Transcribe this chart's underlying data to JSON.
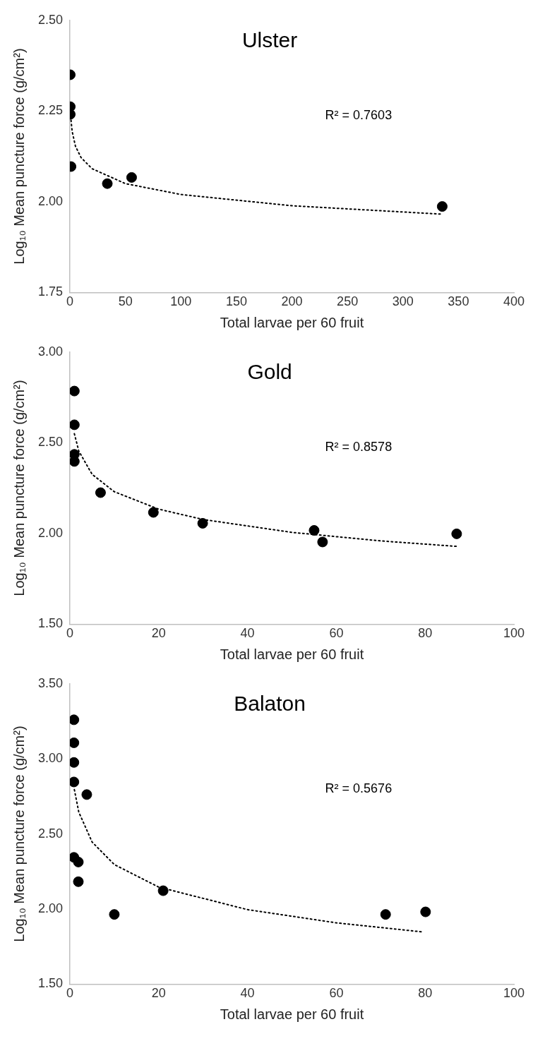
{
  "chart_data": [
    {
      "type": "scatter",
      "title": "Ulster",
      "xlabel": "Total larvae per 60 fruit",
      "ylabel": "Log₁₀ Mean puncture force (g/cm²)",
      "annotations": [
        "R² = 0.7603"
      ],
      "grid": false,
      "legend": false,
      "marker": "circle",
      "xlim": [
        0,
        400
      ],
      "xticks": [
        0,
        50,
        100,
        150,
        200,
        250,
        300,
        350,
        400
      ],
      "ylim": [
        1.75,
        2.5
      ],
      "yticks": [
        {
          "value": 1.75,
          "label": "1.75"
        },
        {
          "value": 2,
          "label": "2.00"
        },
        {
          "value": 2.25,
          "label": "2.25"
        },
        {
          "value": 2.5,
          "label": "2.50"
        }
      ],
      "series": [
        {
          "type": "scatter",
          "color": "#000000",
          "x": [
            0.3,
            0.3,
            0.3,
            1,
            33.7,
            55.6,
            335.4
          ],
          "values": [
            2.35,
            2.262,
            2.241,
            2.097,
            2.05,
            2.067,
            1.987
          ]
        },
        {
          "type": "line",
          "color": "#000000",
          "line_style": "dotted",
          "marker": "none",
          "x": [
            1,
            2,
            5,
            10,
            20,
            50,
            100,
            200,
            334
          ],
          "values": [
            2.225,
            2.194,
            2.153,
            2.122,
            2.091,
            2.05,
            2.02,
            1.989,
            1.966
          ]
        }
      ]
    },
    {
      "type": "scatter",
      "title": "Gold",
      "xlabel": "Total larvae per 60 fruit",
      "ylabel": "Log₁₀ Mean puncture force (g/cm²)",
      "annotations": [
        "R² = 0.8578"
      ],
      "grid": false,
      "legend": false,
      "marker": "circle",
      "xlim": [
        0,
        100
      ],
      "xticks": [
        0,
        20,
        40,
        60,
        80,
        100
      ],
      "ylim": [
        1.5,
        3
      ],
      "yticks": [
        {
          "value": 1.5,
          "label": "1.50"
        },
        {
          "value": 2,
          "label": "2.00"
        },
        {
          "value": 2.5,
          "label": "2.50"
        },
        {
          "value": 3,
          "label": "3.00"
        }
      ],
      "series": [
        {
          "type": "scatter",
          "color": "#000000",
          "x": [
            1,
            1,
            1,
            1,
            6.9,
            18.8,
            29.9,
            55,
            56.9,
            87.1
          ],
          "values": [
            2.785,
            2.599,
            2.436,
            2.397,
            2.225,
            2.116,
            2.056,
            2.017,
            1.953,
            1.998
          ]
        },
        {
          "type": "line",
          "color": "#000000",
          "line_style": "dotted",
          "marker": "none",
          "x": [
            1,
            2,
            5,
            10,
            20,
            30,
            50,
            70,
            87
          ],
          "values": [
            2.55,
            2.454,
            2.326,
            2.23,
            2.134,
            2.077,
            2.006,
            1.959,
            1.929
          ]
        }
      ]
    },
    {
      "type": "scatter",
      "title": "Balaton",
      "xlabel": "Total larvae per 60 fruit",
      "ylabel": "Log₁₀ Mean puncture force (g/cm²)",
      "annotations": [
        "R² = 0.5676"
      ],
      "grid": false,
      "legend": false,
      "marker": "circle",
      "xlim": [
        0,
        100
      ],
      "xticks": [
        0,
        20,
        40,
        60,
        80,
        100
      ],
      "ylim": [
        1.5,
        3.5
      ],
      "yticks": [
        {
          "value": 1.5,
          "label": "1.50"
        },
        {
          "value": 2,
          "label": "2.00"
        },
        {
          "value": 2.5,
          "label": "2.50"
        },
        {
          "value": 3,
          "label": "3.00"
        },
        {
          "value": 3.5,
          "label": "3.50"
        }
      ],
      "series": [
        {
          "type": "scatter",
          "color": "#000000",
          "x": [
            0.9,
            0.9,
            0.9,
            0.9,
            3.8,
            0.9,
            1.9,
            1.9,
            10,
            21,
            71.1,
            80.1
          ],
          "values": [
            3.26,
            3.107,
            2.976,
            2.846,
            2.762,
            2.344,
            2.313,
            2.182,
            1.964,
            2.122,
            1.964,
            1.981
          ]
        },
        {
          "type": "line",
          "color": "#000000",
          "line_style": "dotted",
          "marker": "none",
          "x": [
            1,
            2,
            5,
            10,
            20,
            40,
            60,
            79.6
          ],
          "values": [
            2.795,
            2.645,
            2.446,
            2.296,
            2.146,
            1.996,
            1.908,
            1.847
          ]
        }
      ]
    }
  ]
}
